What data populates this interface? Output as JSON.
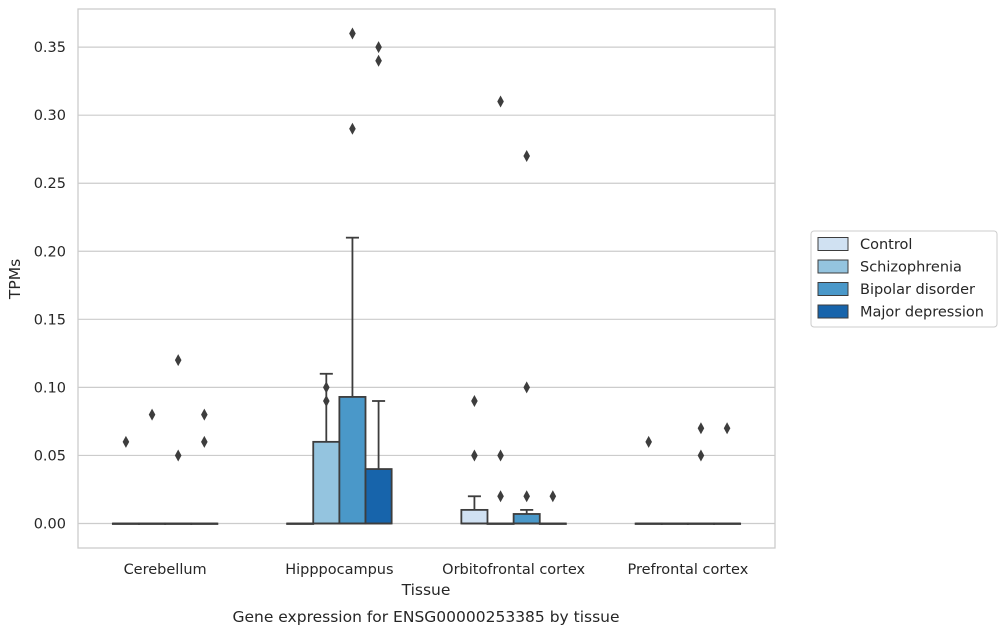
{
  "chart_data": {
    "type": "boxplot",
    "xlabel": "Tissue",
    "ylabel": "TPMs",
    "caption": "Gene expression for ENSG00000253385 by tissue",
    "ylim": [
      -0.018,
      0.378
    ],
    "yticks": [
      "0.00",
      "0.05",
      "0.10",
      "0.15",
      "0.20",
      "0.25",
      "0.30",
      "0.35"
    ],
    "grid": "horizontal",
    "legend_position": "right",
    "categories": [
      "Cerebellum",
      "Hipppocampus",
      "Orbitofrontal cortex",
      "Prefrontal cortex"
    ],
    "series": [
      {
        "name": "Control",
        "color": "#d0e1f2",
        "boxes": [
          {
            "q1": 0,
            "median": 0,
            "q3": 0,
            "whisker_low": 0,
            "whisker_high": 0,
            "outliers": [
              0.06
            ]
          },
          {
            "q1": 0,
            "median": 0,
            "q3": 0,
            "whisker_low": 0,
            "whisker_high": 0,
            "outliers": []
          },
          {
            "q1": 0,
            "median": 0,
            "q3": 0.01,
            "whisker_low": 0,
            "whisker_high": 0.02,
            "outliers": [
              0.05,
              0.09
            ]
          },
          {
            "q1": 0,
            "median": 0,
            "q3": 0,
            "whisker_low": 0,
            "whisker_high": 0,
            "outliers": [
              0.06
            ]
          }
        ]
      },
      {
        "name": "Schizophrenia",
        "color": "#94c4df",
        "boxes": [
          {
            "q1": 0,
            "median": 0,
            "q3": 0,
            "whisker_low": 0,
            "whisker_high": 0,
            "outliers": [
              0.08
            ]
          },
          {
            "q1": 0,
            "median": 0,
            "q3": 0.06,
            "whisker_low": 0,
            "whisker_high": 0.11,
            "outliers": [
              0.09,
              0.1
            ]
          },
          {
            "q1": 0,
            "median": 0,
            "q3": 0,
            "whisker_low": 0,
            "whisker_high": 0,
            "outliers": [
              0.02,
              0.05,
              0.31
            ]
          },
          {
            "q1": 0,
            "median": 0,
            "q3": 0,
            "whisker_low": 0,
            "whisker_high": 0,
            "outliers": []
          }
        ]
      },
      {
        "name": "Bipolar disorder",
        "color": "#4a98c9",
        "boxes": [
          {
            "q1": 0,
            "median": 0,
            "q3": 0,
            "whisker_low": 0,
            "whisker_high": 0,
            "outliers": [
              0.05,
              0.12
            ]
          },
          {
            "q1": 0,
            "median": 0,
            "q3": 0.093,
            "whisker_low": 0,
            "whisker_high": 0.21,
            "outliers": [
              0.29,
              0.36
            ]
          },
          {
            "q1": 0,
            "median": 0,
            "q3": 0.007,
            "whisker_low": 0,
            "whisker_high": 0.01,
            "outliers": [
              0.02,
              0.1,
              0.27
            ]
          },
          {
            "q1": 0,
            "median": 0,
            "q3": 0,
            "whisker_low": 0,
            "whisker_high": 0,
            "outliers": [
              0.05,
              0.07
            ]
          }
        ]
      },
      {
        "name": "Major depression",
        "color": "#1764ab",
        "boxes": [
          {
            "q1": 0,
            "median": 0,
            "q3": 0,
            "whisker_low": 0,
            "whisker_high": 0,
            "outliers": [
              0.06,
              0.08
            ]
          },
          {
            "q1": 0,
            "median": 0,
            "q3": 0.04,
            "whisker_low": 0,
            "whisker_high": 0.09,
            "outliers": [
              0.34,
              0.35
            ]
          },
          {
            "q1": 0,
            "median": 0,
            "q3": 0,
            "whisker_low": 0,
            "whisker_high": 0,
            "outliers": [
              0.02
            ]
          },
          {
            "q1": 0,
            "median": 0,
            "q3": 0,
            "whisker_low": 0,
            "whisker_high": 0,
            "outliers": [
              0.07
            ]
          }
        ]
      }
    ]
  }
}
